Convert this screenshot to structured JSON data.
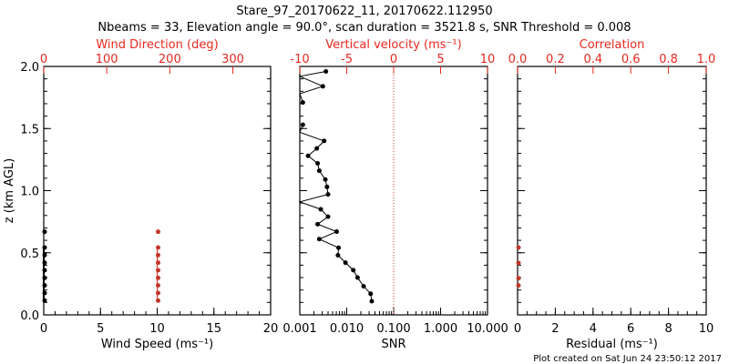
{
  "title_line1": "Stare_97_20170622_11, 20170622.112950",
  "title_line2": "Nbeams = 33, Elevation angle = 90.0°, scan duration = 3521.8 s, SNR Threshold = 0.008",
  "footer": "Plot created on Sat Jun 24 23:50:12 2017",
  "colors": {
    "axis": "#000000",
    "secondary": "#e8281e",
    "points": "#c0392b"
  },
  "chart_data": [
    {
      "type": "scatter",
      "ylabel": "z (km AGL)",
      "ylim": [
        0,
        2
      ],
      "yticks": [
        "0.0",
        "0.5",
        "1.0",
        "1.5",
        "2.0"
      ],
      "xlabel": "Wind Speed (ms⁻¹)",
      "xlim": [
        0,
        20
      ],
      "xticks": [
        "0",
        "5",
        "10",
        "15",
        "20"
      ],
      "top_xlabel": "Wind Direction (deg)",
      "top_xlim": [
        0,
        360
      ],
      "top_xticks": [
        "0",
        "100",
        "200",
        "300"
      ],
      "series": [
        {
          "name": "Wind Speed",
          "color": "#000000",
          "z": [
            0.115,
            0.176,
            0.237,
            0.298,
            0.359,
            0.42,
            0.481,
            0.542,
            0.669
          ],
          "x": [
            0,
            0,
            0,
            0,
            0,
            0,
            0,
            0,
            0
          ]
        },
        {
          "name": "Wind Direction",
          "color": "#c0392b",
          "z": [
            0.115,
            0.176,
            0.237,
            0.298,
            0.359,
            0.42,
            0.481,
            0.542,
            0.669
          ],
          "x": [
            180,
            180,
            180,
            180,
            180,
            180,
            180,
            180,
            180
          ]
        }
      ]
    },
    {
      "type": "line",
      "xlabel": "SNR",
      "xscale": "log",
      "xlim": [
        0.001,
        10
      ],
      "xticks": [
        "0.001",
        "0.010",
        "0.100",
        "1.000",
        "10.000"
      ],
      "top_xlabel": "Vertical velocity (ms⁻¹)",
      "top_xlim": [
        -10,
        10
      ],
      "top_xticks": [
        "-10",
        "-5",
        "0",
        "5",
        "10"
      ],
      "reference_line_top_x": 0,
      "series": [
        {
          "name": "SNR",
          "z": [
            0.11,
            0.17,
            0.23,
            0.3,
            0.36,
            0.42,
            0.48,
            0.54,
            0.61,
            0.67,
            0.73,
            0.79,
            0.85,
            0.91,
            0.97,
            1.03,
            1.09,
            1.16,
            1.22,
            1.28,
            1.34,
            1.4,
            1.47,
            1.53,
            1.59,
            1.65,
            1.71,
            1.78,
            1.84,
            1.92,
            1.96
          ],
          "snr": [
            0.0342,
            0.0323,
            0.0229,
            0.017,
            0.0138,
            0.0094,
            0.0065,
            0.0067,
            0.0026,
            0.0061,
            0.0024,
            0.004,
            0.0028,
            0.0005,
            0.004,
            0.0038,
            0.0035,
            0.0026,
            0.0024,
            0.0015,
            0.0023,
            0.0033,
            0.0005,
            0.00116,
            null,
            null,
            0.00116,
            0.0005,
            0.0031,
            0.0005,
            0.0036
          ]
        }
      ]
    },
    {
      "type": "scatter",
      "xlabel": "Residual (ms⁻¹)",
      "xlim": [
        0,
        10
      ],
      "xticks": [
        "0",
        "2",
        "4",
        "6",
        "8",
        "10"
      ],
      "top_xlabel": "Correlation",
      "top_xlim": [
        0,
        1
      ],
      "top_xticks": [
        "0.0",
        "0.2",
        "0.4",
        "0.6",
        "0.8",
        "1.0"
      ],
      "series": [
        {
          "name": "Residual",
          "color": "#c0392b",
          "z": [
            0.237,
            0.295,
            0.418,
            0.542
          ],
          "x": [
            0,
            0,
            0,
            0
          ]
        }
      ]
    }
  ]
}
